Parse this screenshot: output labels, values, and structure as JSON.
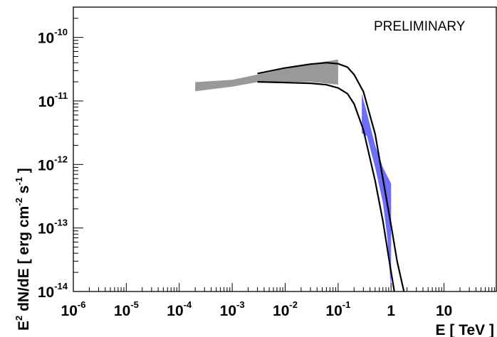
{
  "chart_data": {
    "type": "line",
    "title": "",
    "annotation": "PRELIMINARY",
    "xlabel": "E [ TeV ]",
    "ylabel": {
      "base": "E",
      "sup1": "2",
      "mid": " dN/dE [ erg cm",
      "sup2": "-2",
      "mid2": " s",
      "sup3": "-1",
      "end": " ]"
    },
    "x_scale": "log",
    "y_scale": "log",
    "xlim": [
      1e-06,
      100
    ],
    "ylim": [
      1e-14,
      3e-10
    ],
    "x_ticks": [
      {
        "value": 1e-06,
        "base": "10",
        "exp": "-6"
      },
      {
        "value": 1e-05,
        "base": "10",
        "exp": "-5"
      },
      {
        "value": 0.0001,
        "base": "10",
        "exp": "-4"
      },
      {
        "value": 0.001,
        "base": "10",
        "exp": "-3"
      },
      {
        "value": 0.01,
        "base": "10",
        "exp": "-2"
      },
      {
        "value": 0.1,
        "base": "10",
        "exp": "-1"
      },
      {
        "value": 1,
        "base": "1",
        "exp": ""
      },
      {
        "value": 10,
        "base": "10",
        "exp": ""
      }
    ],
    "y_ticks": [
      {
        "value": 1e-14,
        "base": "10",
        "exp": "-14"
      },
      {
        "value": 1e-13,
        "base": "10",
        "exp": "-13"
      },
      {
        "value": 1e-12,
        "base": "10",
        "exp": "-12"
      },
      {
        "value": 1e-11,
        "base": "10",
        "exp": "-11"
      },
      {
        "value": 1e-10,
        "base": "10",
        "exp": "-10"
      }
    ],
    "grid": false,
    "series": [
      {
        "kind": "curve",
        "color": "#000000",
        "points": [
          [
            0.003,
            2.7e-11
          ],
          [
            0.01,
            3.3e-11
          ],
          [
            0.03,
            3.8e-11
          ],
          [
            0.06,
            4e-11
          ],
          [
            0.1,
            3.85e-11
          ],
          [
            0.15,
            3.4e-11
          ],
          [
            0.2,
            2.6e-11
          ],
          [
            0.3,
            1.4e-11
          ],
          [
            0.5,
            3e-12
          ],
          [
            0.7,
            6e-13
          ],
          [
            1.0,
            1.1e-13
          ],
          [
            1.3,
            3e-14
          ],
          [
            1.75,
            1e-14
          ]
        ]
      },
      {
        "kind": "curve",
        "color": "#000000",
        "points": [
          [
            0.003,
            2e-11
          ],
          [
            0.01,
            1.95e-11
          ],
          [
            0.03,
            1.9e-11
          ],
          [
            0.06,
            1.8e-11
          ],
          [
            0.1,
            1.6e-11
          ],
          [
            0.15,
            1.3e-11
          ],
          [
            0.2,
            9e-12
          ],
          [
            0.3,
            3.5e-12
          ],
          [
            0.5,
            5.5e-13
          ],
          [
            0.7,
            1.3e-13
          ],
          [
            0.9,
            3.5e-14
          ],
          [
            1.15,
            1e-14
          ]
        ]
      },
      {
        "kind": "band",
        "color": "#999999",
        "upper": [
          [
            0.0002,
            1.98e-11
          ],
          [
            0.001,
            2.15e-11
          ],
          [
            0.003,
            2.6e-11
          ],
          [
            0.01,
            3.2e-11
          ],
          [
            0.03,
            3.8e-11
          ],
          [
            0.1,
            4.5e-11
          ]
        ],
        "lower": [
          [
            0.0002,
            1.42e-11
          ],
          [
            0.001,
            1.68e-11
          ],
          [
            0.003,
            1.98e-11
          ],
          [
            0.01,
            2e-11
          ],
          [
            0.03,
            2e-11
          ],
          [
            0.1,
            1.8e-11
          ]
        ]
      },
      {
        "kind": "band",
        "color": "#6e6efa",
        "upper": [
          [
            0.28,
            1.3e-11
          ],
          [
            0.35,
            6.5e-12
          ],
          [
            0.5,
            2e-12
          ],
          [
            0.7,
            9e-13
          ],
          [
            1.0,
            5e-13
          ]
        ],
        "lower": [
          [
            0.28,
            3.1e-12
          ],
          [
            0.35,
            2.8e-12
          ],
          [
            0.5,
            9e-13
          ],
          [
            0.7,
            2.5e-13
          ],
          [
            0.85,
            7e-14
          ],
          [
            1.0,
            1e-14
          ]
        ]
      }
    ]
  }
}
